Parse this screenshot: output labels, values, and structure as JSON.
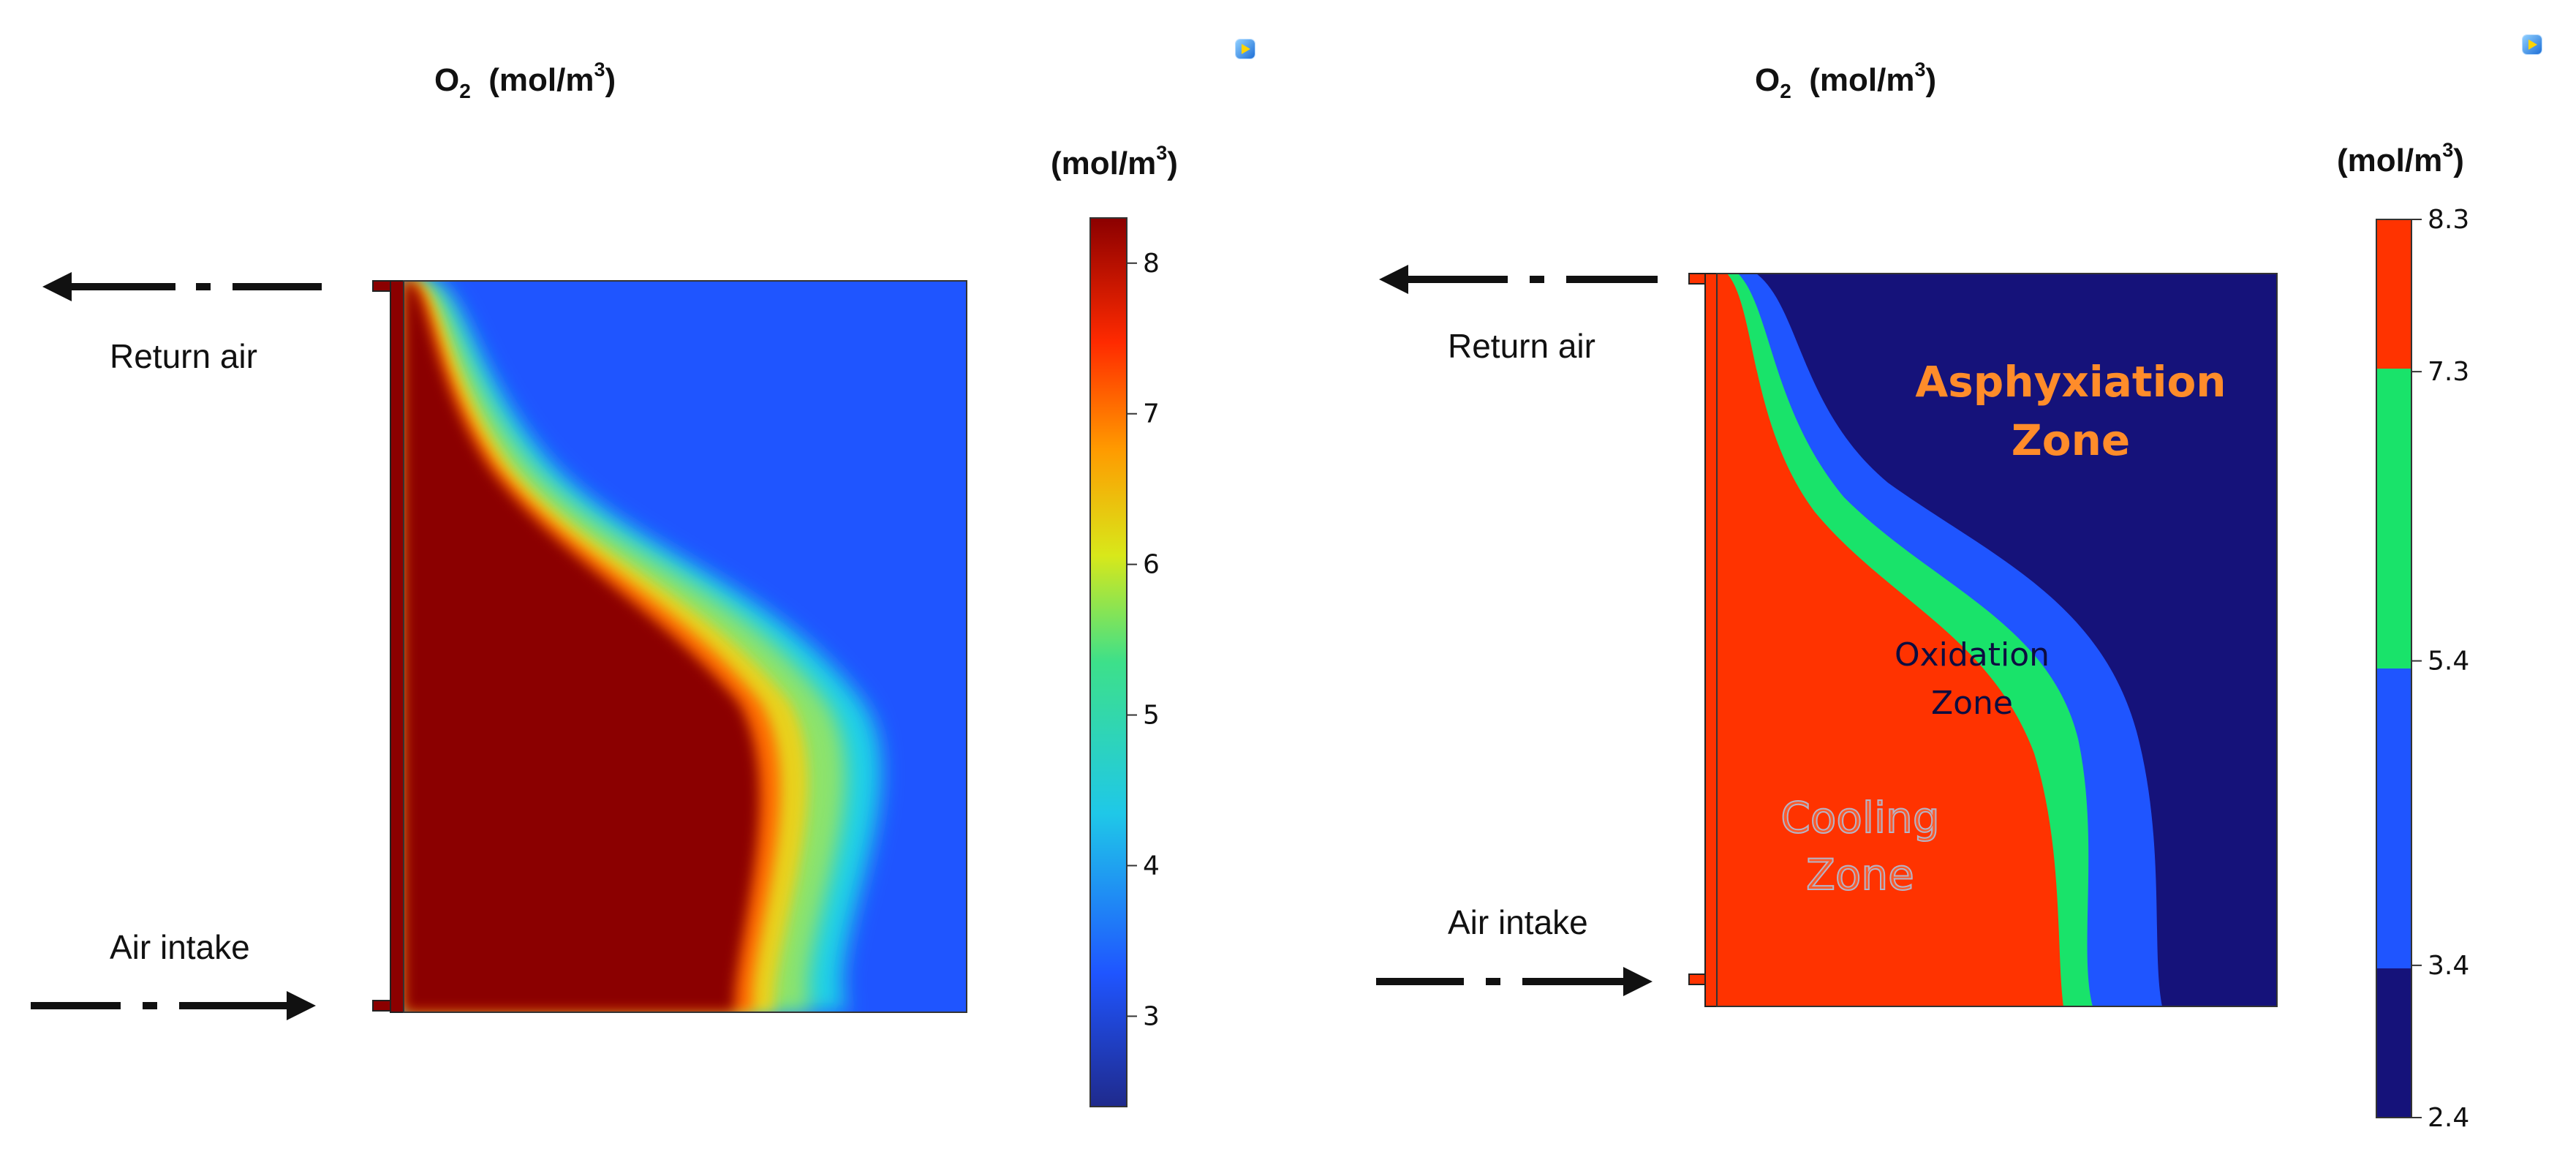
{
  "left": {
    "title_prefix": "O",
    "title_sub": "2",
    "title_units": "(mol/m",
    "title_sup": "3",
    "title_close": ")",
    "colorbar_unit": "(mol/m",
    "colorbar_sup": "3",
    "colorbar_close": ")",
    "colorbar_ticks": [
      "8",
      "7",
      "6",
      "5",
      "4",
      "3"
    ],
    "colorbar_tick_values": [
      8,
      7,
      6,
      5,
      4,
      3
    ],
    "colorbar_range": [
      2.4,
      8.3
    ],
    "return_air_label": "Return air",
    "air_intake_label": "Air intake",
    "icon": "comsol-app-icon"
  },
  "right": {
    "title_prefix": "O",
    "title_sub": "2",
    "title_units": "(mol/m",
    "title_sup": "3",
    "title_close": ")",
    "colorbar_unit": "(mol/m",
    "colorbar_sup": "3",
    "colorbar_close": ")",
    "colorbar_ticks": [
      "8.3",
      "7.3",
      "5.4",
      "3.4",
      "2.4"
    ],
    "colorbar_tick_values": [
      8.3,
      7.3,
      5.4,
      3.4,
      2.4
    ],
    "return_air_label": "Return air",
    "air_intake_label": "Air intake",
    "zone_asphyxiation_1": "Asphyxiation",
    "zone_asphyxiation_2": "Zone",
    "zone_oxidation_1": "Oxidation",
    "zone_oxidation_2": "Zone",
    "zone_cooling_1": "Cooling",
    "zone_cooling_2": "Zone",
    "icon": "comsol-app-icon"
  },
  "colors": {
    "high": "#8b0000",
    "cooling": "#ff3300",
    "oxidation": "#19e36a",
    "low_blue": "#1f55ff",
    "asphyxiation": "#15127a",
    "return_arrow_glow": "#f4a0a8",
    "intake_arrow_glow": "#58e4e4",
    "zone_text_orange": "#ff8c2a"
  }
}
